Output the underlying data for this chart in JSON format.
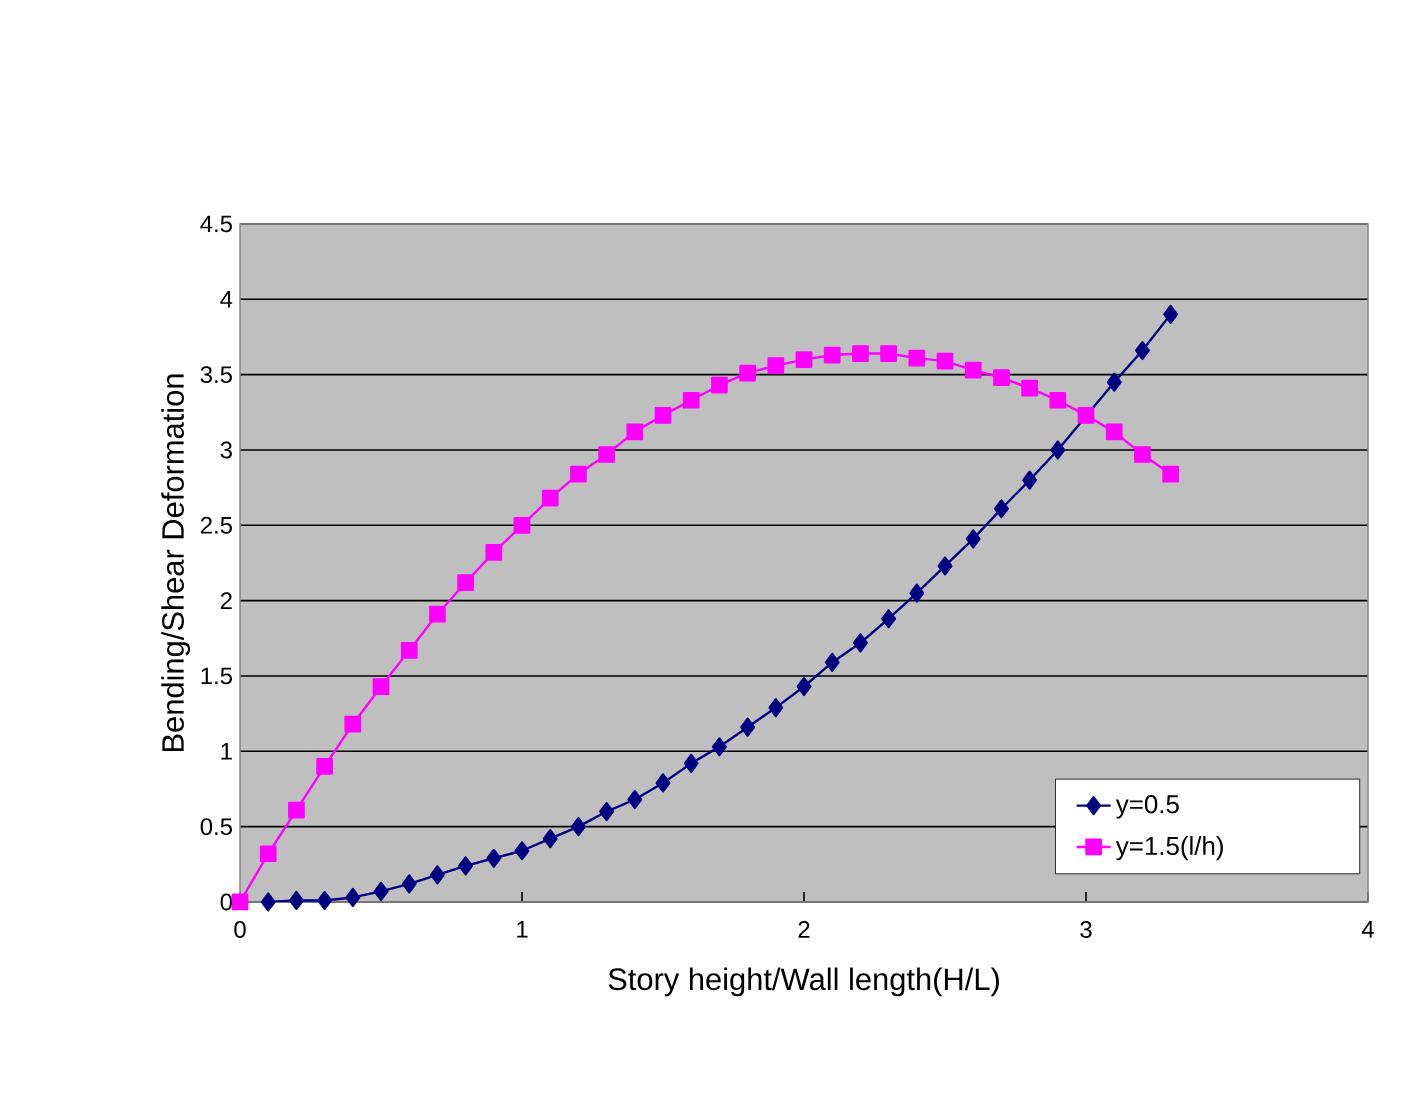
{
  "chart_data": {
    "type": "line",
    "xlabel": "Story height/Wall length(H/L)",
    "ylabel": "Bending/Shear Deformation",
    "x": [
      0,
      0.1,
      0.2,
      0.3,
      0.4,
      0.5,
      0.6,
      0.7,
      0.8,
      0.9,
      1.0,
      1.1,
      1.2,
      1.3,
      1.4,
      1.5,
      1.6,
      1.7,
      1.8,
      1.9,
      2.0,
      2.1,
      2.2,
      2.3,
      2.4,
      2.5,
      2.6,
      2.7,
      2.8,
      2.9,
      3.0,
      3.1,
      3.2,
      3.3
    ],
    "series": [
      {
        "name": "y=0.5",
        "color": "#000080",
        "marker": "diamond",
        "x": [
          0.1,
          0.2,
          0.3,
          0.4,
          0.5,
          0.6,
          0.7,
          0.8,
          0.9,
          1.0,
          1.1,
          1.2,
          1.3,
          1.4,
          1.5,
          1.6,
          1.7,
          1.8,
          1.9,
          2.0,
          2.1,
          2.2,
          2.3,
          2.4,
          2.5,
          2.6,
          2.7,
          2.8,
          2.9,
          3.0,
          3.1,
          3.2,
          3.3
        ],
        "values": [
          0,
          0.01,
          0.01,
          0.03,
          0.07,
          0.12,
          0.18,
          0.24,
          0.29,
          0.34,
          0.42,
          0.5,
          0.6,
          0.68,
          0.79,
          0.92,
          1.03,
          1.16,
          1.29,
          1.43,
          1.59,
          1.72,
          1.88,
          2.05,
          2.23,
          2.41,
          2.61,
          2.8,
          3.0,
          null,
          3.45,
          3.66,
          3.9
        ]
      },
      {
        "name": "y=1.5(l/h)",
        "color": "#ff00ff",
        "marker": "square",
        "values": [
          0,
          0.32,
          0.61,
          0.9,
          1.18,
          1.43,
          1.67,
          1.91,
          2.12,
          2.32,
          2.5,
          2.68,
          2.84,
          2.97,
          3.12,
          3.23,
          3.33,
          3.43,
          3.51,
          3.56,
          3.6,
          3.63,
          3.64,
          3.64,
          3.61,
          3.59,
          3.53,
          3.48,
          3.41,
          3.33,
          3.23,
          3.12,
          2.97,
          2.84
        ]
      }
    ],
    "xlim": [
      0,
      4
    ],
    "xticks": [
      0,
      1,
      2,
      3,
      4
    ],
    "ylim": [
      0,
      4.5
    ],
    "yticks": [
      0,
      0.5,
      1,
      1.5,
      2,
      2.5,
      3,
      3.5,
      4,
      4.5
    ],
    "grid": "y",
    "legend": "bottom right",
    "line_style": "solid"
  }
}
